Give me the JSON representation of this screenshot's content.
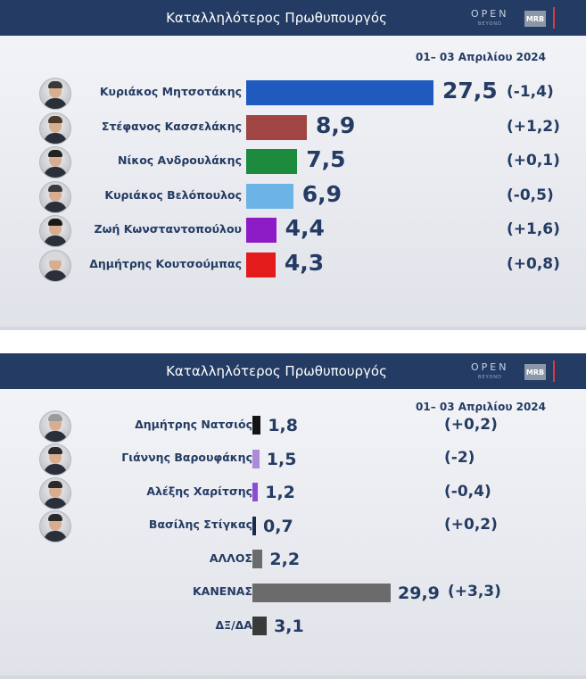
{
  "panels": [
    {
      "title": "Καταλληλότερος Πρωθυπουργός",
      "date": "01– 03 Απριλίου 2024",
      "logo": {
        "open": "OPEN",
        "beyond": "BEYOND",
        "mrb": "MRB"
      }
    },
    {
      "title": "Καταλληλότερος Πρωθυπουργός",
      "date": "01– 03 Απριλίου 2024",
      "logo": {
        "open": "OPEN",
        "beyond": "BEYOND",
        "mrb": "MRB"
      }
    }
  ],
  "chart_data": [
    {
      "type": "bar",
      "orientation": "horizontal",
      "categories": [
        "Κυριάκος Μητσοτάκης",
        "Στέφανος Κασσελάκης",
        "Νίκος Ανδρουλάκης",
        "Κυριάκος Βελόπουλος",
        "Ζωή Κωνσταντοπούλου",
        "Δημήτρης Κουτσούμπας"
      ],
      "values": [
        27.5,
        8.9,
        7.5,
        6.9,
        4.4,
        4.3
      ],
      "value_labels": [
        "27,5",
        "8,9",
        "7,5",
        "6,9",
        "4,4",
        "4,3"
      ],
      "changes": [
        "(-1,4)",
        "(+1,2)",
        "(+0,1)",
        "(-0,5)",
        "(+1,6)",
        "(+0,8)"
      ],
      "colors": [
        "#1f5bbf",
        "#a14444",
        "#1b8a3c",
        "#6cb4e6",
        "#8e1cc6",
        "#e41b1b"
      ],
      "has_avatar": [
        true,
        true,
        true,
        true,
        true,
        true
      ],
      "grid": false
    },
    {
      "type": "bar",
      "orientation": "horizontal",
      "categories": [
        "Δημήτρης Νατσιός",
        "Γιάννης Βαρουφάκης",
        "Αλέξης Χαρίτσης",
        "Βασίλης Στίγκας",
        "ΑΛΛΟΣ",
        "ΚΑΝΕΝΑΣ",
        "ΔΞ/ΔΑ"
      ],
      "values": [
        1.8,
        1.5,
        1.2,
        0.7,
        2.2,
        29.9,
        3.1
      ],
      "value_labels": [
        "1,8",
        "1,5",
        "1,2",
        "0,7",
        "2,2",
        "29,9",
        "3,1"
      ],
      "changes": [
        "(+0,2)",
        "(-2)",
        "(-0,4)",
        "(+0,2)",
        "",
        "(+3,3)",
        ""
      ],
      "colors": [
        "#141414",
        "#a98bd9",
        "#8d4cd4",
        "#1a2a4a",
        "#6b6b6b",
        "#6b6b6b",
        "#3a3a3a"
      ],
      "has_avatar": [
        true,
        true,
        true,
        true,
        false,
        false,
        false
      ],
      "grid": false
    }
  ]
}
